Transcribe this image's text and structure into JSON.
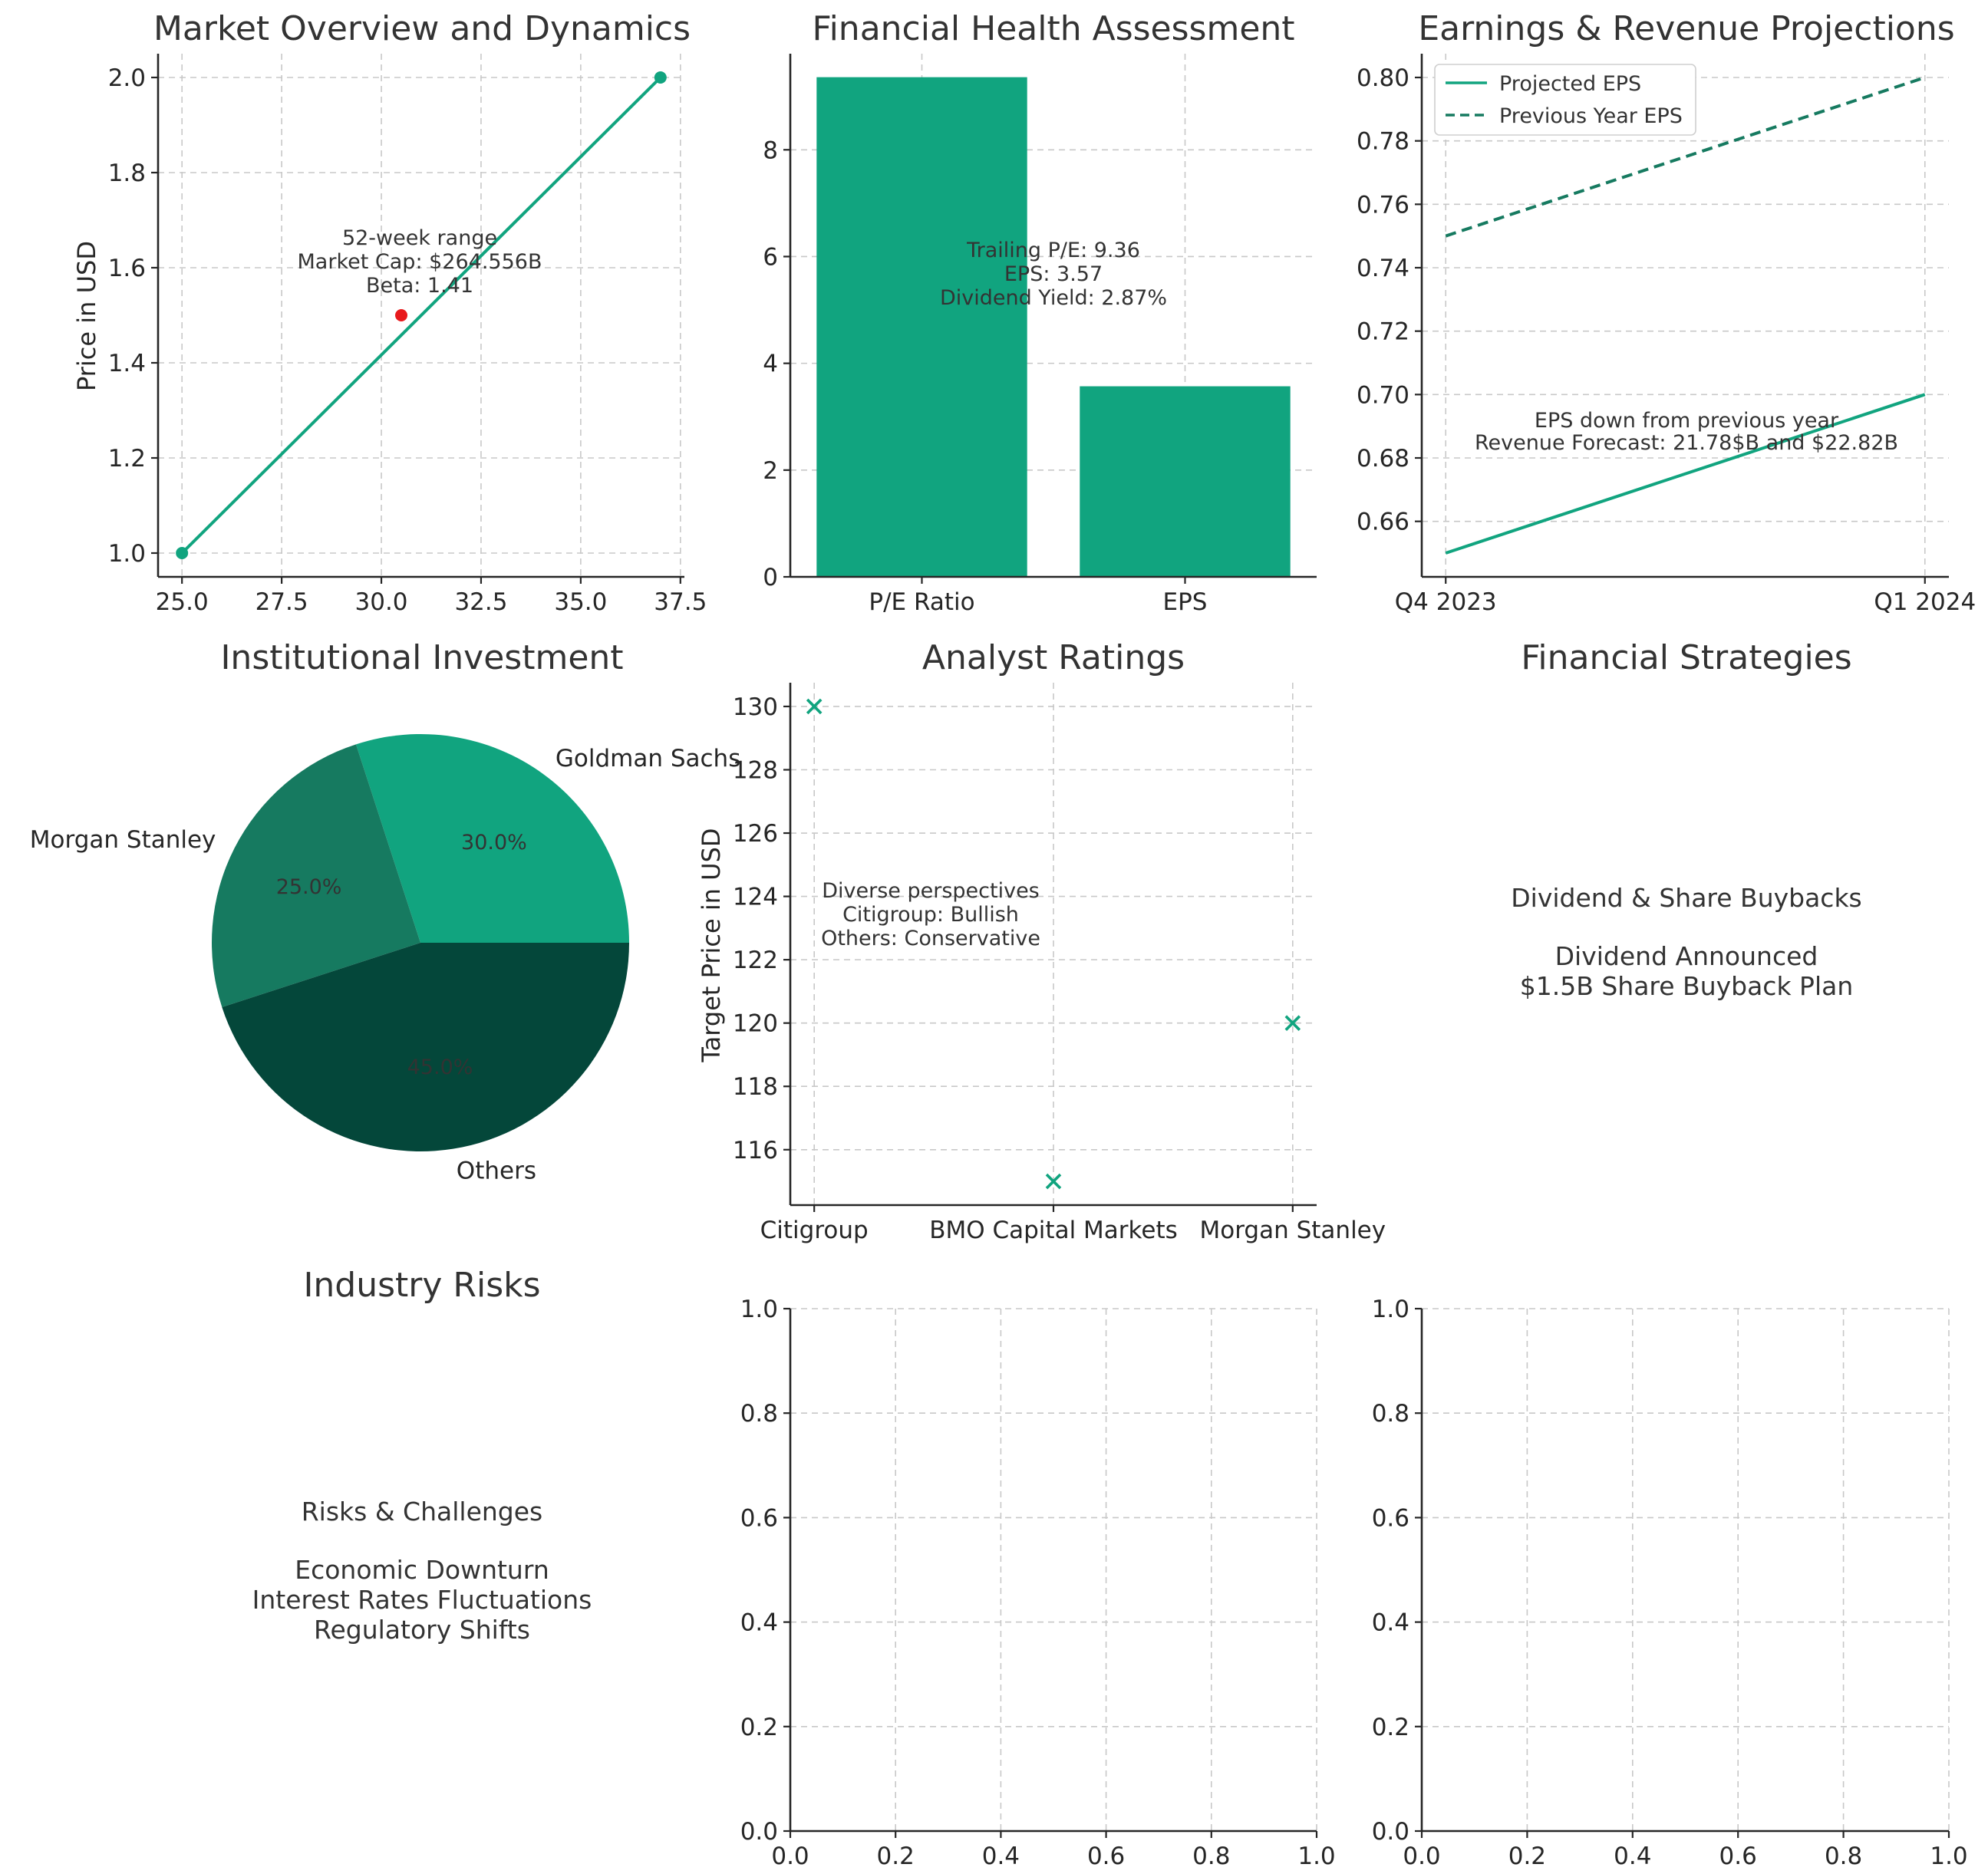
{
  "palette": {
    "accent": "#11a47f",
    "dark_green": "#167a60",
    "darker_green": "#04473a",
    "highlight": "#e8191c",
    "text": "#333333"
  },
  "chart_data": [
    {
      "id": "market",
      "type": "line",
      "title": "Market Overview and Dynamics",
      "xlabel": "",
      "ylabel": "Price in USD",
      "x": [
        25,
        37
      ],
      "y": [
        1.0,
        2.0
      ],
      "xlim": [
        24.4,
        37.6
      ],
      "ylim": [
        0.95,
        2.05
      ],
      "xticks": [
        25.0,
        27.5,
        30.0,
        32.5,
        35.0,
        37.5
      ],
      "xtick_labels": [
        "25.0",
        "27.5",
        "30.0",
        "32.5",
        "35.0",
        "37.5"
      ],
      "yticks": [
        1.0,
        1.2,
        1.4,
        1.6,
        1.8,
        2.0
      ],
      "ytick_labels": [
        "1.0",
        "1.2",
        "1.4",
        "1.6",
        "1.8",
        "2.0"
      ],
      "highlight_point": {
        "x": 30.5,
        "y": 1.5
      },
      "annotation": [
        "52-week range",
        "Market Cap: $264.556B",
        "Beta: 1.41"
      ],
      "grid": true
    },
    {
      "id": "health",
      "type": "bar",
      "title": "Financial Health Assessment",
      "xlabel": "",
      "ylabel": "",
      "categories": [
        "P/E Ratio",
        "EPS"
      ],
      "values": [
        9.36,
        3.57
      ],
      "ylim": [
        0,
        9.8
      ],
      "yticks": [
        0,
        2,
        4,
        6,
        8
      ],
      "ytick_labels": [
        "0",
        "2",
        "4",
        "6",
        "8"
      ],
      "annotation": [
        "Trailing P/E: 9.36",
        "EPS: 3.57",
        "Dividend Yield: 2.87%"
      ],
      "grid": true
    },
    {
      "id": "earnings",
      "type": "line",
      "title": "Earnings & Revenue Projections",
      "xlabel": "",
      "ylabel": "",
      "categories": [
        "Q4 2023",
        "Q1 2024"
      ],
      "series": [
        {
          "name": "Projected EPS",
          "values": [
            0.65,
            0.7
          ],
          "style": "solid"
        },
        {
          "name": "Previous Year EPS",
          "values": [
            0.75,
            0.8
          ],
          "style": "dashed"
        }
      ],
      "ylim": [
        0.6425,
        0.8075
      ],
      "yticks": [
        0.66,
        0.68,
        0.7,
        0.72,
        0.74,
        0.76,
        0.78,
        0.8
      ],
      "ytick_labels": [
        "0.66",
        "0.68",
        "0.70",
        "0.72",
        "0.74",
        "0.76",
        "0.78",
        "0.80"
      ],
      "annotation": [
        "EPS down from previous year",
        "Revenue Forecast: 21.78$B and $22.82B"
      ],
      "legend_position": "top-left",
      "grid": true
    },
    {
      "id": "institutional",
      "type": "pie",
      "title": "Institutional Investment",
      "slices": [
        {
          "label": "Goldman Sachs",
          "value": 30.0,
          "pct_label": "30.0%"
        },
        {
          "label": "Morgan Stanley",
          "value": 25.0,
          "pct_label": "25.0%"
        },
        {
          "label": "Others",
          "value": 45.0,
          "pct_label": "45.0%"
        }
      ]
    },
    {
      "id": "analyst",
      "type": "scatter",
      "title": "Analyst Ratings",
      "xlabel": "",
      "ylabel": "Target Price in USD",
      "categories": [
        "Citigroup",
        "BMO Capital Markets",
        "Morgan Stanley"
      ],
      "values": [
        130,
        115,
        120
      ],
      "ylim": [
        114.25,
        130.75
      ],
      "yticks": [
        116,
        118,
        120,
        122,
        124,
        126,
        128,
        130
      ],
      "ytick_labels": [
        "116",
        "118",
        "120",
        "122",
        "124",
        "126",
        "128",
        "130"
      ],
      "annotation": [
        "Diverse perspectives",
        "Citigroup: Bullish",
        "Others: Conservative"
      ],
      "grid": true
    },
    {
      "id": "empty1",
      "type": "scatter",
      "title": "",
      "xlim": [
        0,
        1
      ],
      "ylim": [
        0,
        1
      ],
      "xticks": [
        0.0,
        0.2,
        0.4,
        0.6,
        0.8,
        1.0
      ],
      "xtick_labels": [
        "0.0",
        "0.2",
        "0.4",
        "0.6",
        "0.8",
        "1.0"
      ],
      "yticks": [
        0.0,
        0.2,
        0.4,
        0.6,
        0.8,
        1.0
      ],
      "ytick_labels": [
        "0.0",
        "0.2",
        "0.4",
        "0.6",
        "0.8",
        "1.0"
      ],
      "grid": true
    },
    {
      "id": "empty2",
      "type": "scatter",
      "title": "",
      "xlim": [
        0,
        1
      ],
      "ylim": [
        0,
        1
      ],
      "xticks": [
        0.0,
        0.2,
        0.4,
        0.6,
        0.8,
        1.0
      ],
      "xtick_labels": [
        "0.0",
        "0.2",
        "0.4",
        "0.6",
        "0.8",
        "1.0"
      ],
      "yticks": [
        0.0,
        0.2,
        0.4,
        0.6,
        0.8,
        1.0
      ],
      "ytick_labels": [
        "0.0",
        "0.2",
        "0.4",
        "0.6",
        "0.8",
        "1.0"
      ],
      "grid": true
    }
  ],
  "text_panels": {
    "strategies": {
      "title": "Financial Strategies",
      "heading": "Dividend & Share Buybacks",
      "lines": [
        "Dividend Announced",
        "$1.5B Share Buyback Plan"
      ]
    },
    "risks": {
      "title": "Industry Risks",
      "heading": "Risks & Challenges",
      "lines": [
        "Economic Downturn",
        "Interest Rates Fluctuations",
        "Regulatory Shifts"
      ]
    }
  }
}
